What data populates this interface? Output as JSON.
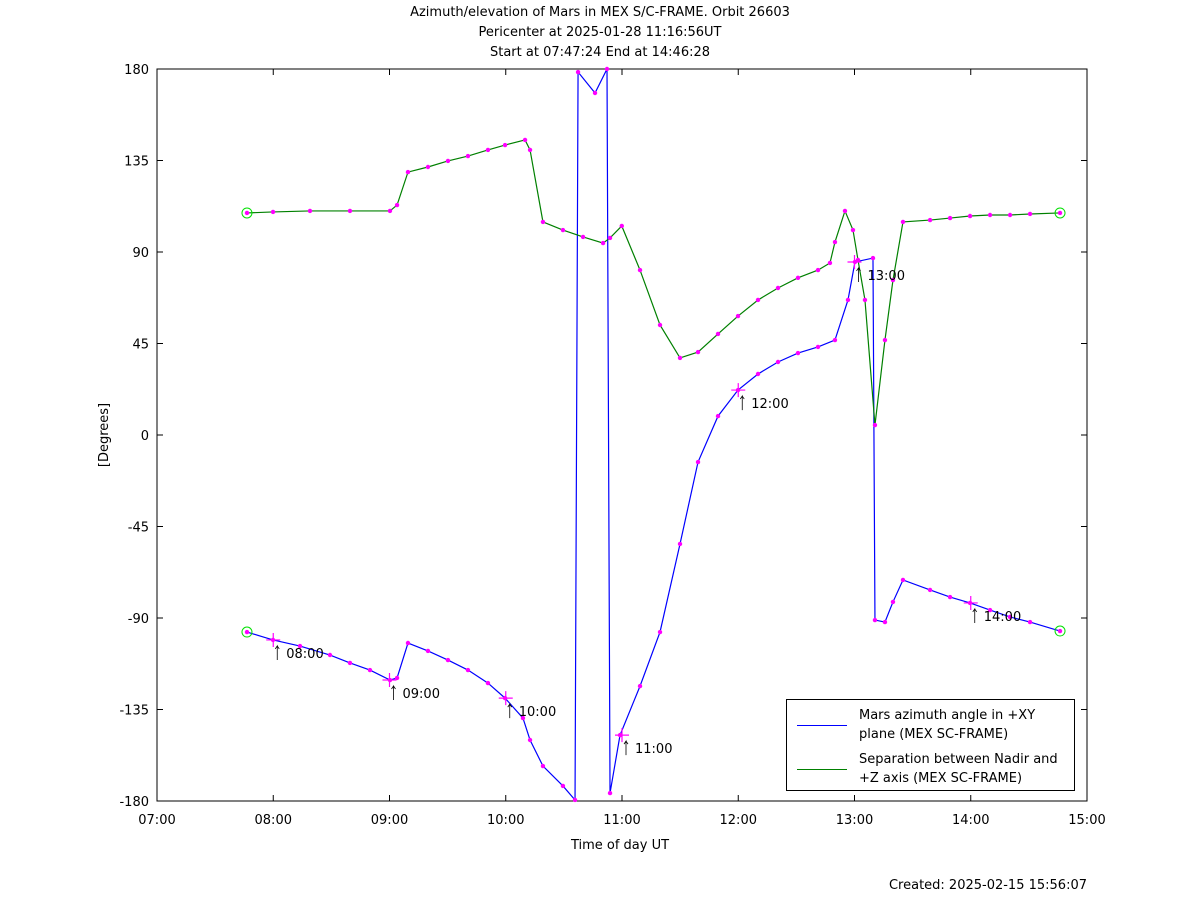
{
  "chart_data": {
    "type": "line",
    "title": "Azimuth/elevation of Mars in MEX S/C-FRAME.  Orbit 26603",
    "subtitle": [
      "Pericenter at 2025-01-28 11:16:56UT",
      "Start at 07:47:24 End at 14:46:28"
    ],
    "xlabel": "Time of day UT",
    "ylabel": "[Degrees]",
    "footer": "Created: 2025-02-15 15:56:07",
    "xlim": [
      7,
      15
    ],
    "xticks": [
      {
        "value": 7,
        "label": "07:00"
      },
      {
        "value": 8,
        "label": "08:00"
      },
      {
        "value": 9,
        "label": "09:00"
      },
      {
        "value": 10,
        "label": "10:00"
      },
      {
        "value": 11,
        "label": "11:00"
      },
      {
        "value": 12,
        "label": "12:00"
      },
      {
        "value": 13,
        "label": "13:00"
      },
      {
        "value": 14,
        "label": "14:00"
      },
      {
        "value": 15,
        "label": "15:00"
      }
    ],
    "ylim": [
      -180,
      180
    ],
    "yticks": [
      -180,
      -135,
      -90,
      -45,
      0,
      45,
      90,
      135,
      180
    ],
    "grid": false,
    "legend": "lower right",
    "marker_color": "#ff00ff",
    "series": [
      {
        "name": "Mars azimuth angle in +XY plane (MEX SC-FRAME)",
        "color": "#0000ff",
        "x": [
          7.774,
          7.998,
          8.23,
          8.488,
          8.66,
          8.832,
          9.004,
          9.065,
          9.159,
          9.331,
          9.503,
          9.675,
          9.847,
          9.994,
          10.148,
          10.209,
          10.32,
          10.492,
          10.596,
          10.622,
          10.768,
          10.871,
          10.897,
          10.983,
          11.155,
          11.327,
          11.499,
          11.654,
          11.826,
          11.998,
          12.17,
          12.342,
          12.514,
          12.686,
          12.832,
          12.944,
          13.004,
          13.159,
          13.176,
          13.262,
          13.331,
          13.417,
          13.65,
          13.822,
          13.994,
          14.166,
          14.338,
          14.51,
          14.768
        ],
        "values": [
          -96.9,
          -100.8,
          -103.8,
          -108.2,
          -112.1,
          -115.6,
          -120.5,
          -119.5,
          -102.3,
          -106.2,
          -110.7,
          -115.6,
          -122.0,
          -129.4,
          -139.2,
          -150.0,
          -162.8,
          -172.6,
          -179.5,
          178.5,
          168.2,
          180,
          -176.1,
          -147.6,
          -123.5,
          -96.9,
          -53.6,
          -13.3,
          9.3,
          22.1,
          30.0,
          35.9,
          40.3,
          43.3,
          46.7,
          66.4,
          85.1,
          87.0,
          -91.0,
          -92.0,
          -82.1,
          -71.3,
          -76.2,
          -79.7,
          -82.6,
          -86.1,
          -89.5,
          -92.0,
          -96.4
        ]
      },
      {
        "name": "Separation between Nadir and +Z axis (MEX SC-FRAME)",
        "color": "#008000",
        "x": [
          7.774,
          7.998,
          8.316,
          8.66,
          9.004,
          9.065,
          9.159,
          9.331,
          9.503,
          9.675,
          9.847,
          9.994,
          10.166,
          10.209,
          10.32,
          10.492,
          10.665,
          10.837,
          10.897,
          10.998,
          11.155,
          11.327,
          11.499,
          11.654,
          11.826,
          11.998,
          12.17,
          12.342,
          12.514,
          12.686,
          12.789,
          12.832,
          12.918,
          12.987,
          13.03,
          13.09,
          13.176,
          13.262,
          13.331,
          13.417,
          13.65,
          13.822,
          13.994,
          14.166,
          14.338,
          14.51,
          14.768
        ],
        "values": [
          109.2,
          109.7,
          110.2,
          110.2,
          110.2,
          113.1,
          129.3,
          131.8,
          134.8,
          137.2,
          140.2,
          142.6,
          145.1,
          140.2,
          104.8,
          100.8,
          97.4,
          94.4,
          96.9,
          102.8,
          81.1,
          54.1,
          37.9,
          40.8,
          49.7,
          58.5,
          66.4,
          72.3,
          77.3,
          81.1,
          84.6,
          94.9,
          110.2,
          100.8,
          86.1,
          66.4,
          4.9,
          46.7,
          76.2,
          104.8,
          105.7,
          106.7,
          107.7,
          108.2,
          108.2,
          108.7,
          109.2
        ]
      }
    ],
    "annotations": [
      {
        "text": "08:00",
        "x": 8.0,
        "y": -100.8
      },
      {
        "text": "09:00",
        "x": 9.0,
        "y": -120.5
      },
      {
        "text": "10:00",
        "x": 10.0,
        "y": -129.4
      },
      {
        "text": "11:00",
        "x": 11.0,
        "y": -147.6
      },
      {
        "text": "12:00",
        "x": 12.0,
        "y": 22.1
      },
      {
        "text": "13:00",
        "x": 13.0,
        "y": 85.1
      },
      {
        "text": "14:00",
        "x": 14.0,
        "y": -82.6
      }
    ]
  }
}
